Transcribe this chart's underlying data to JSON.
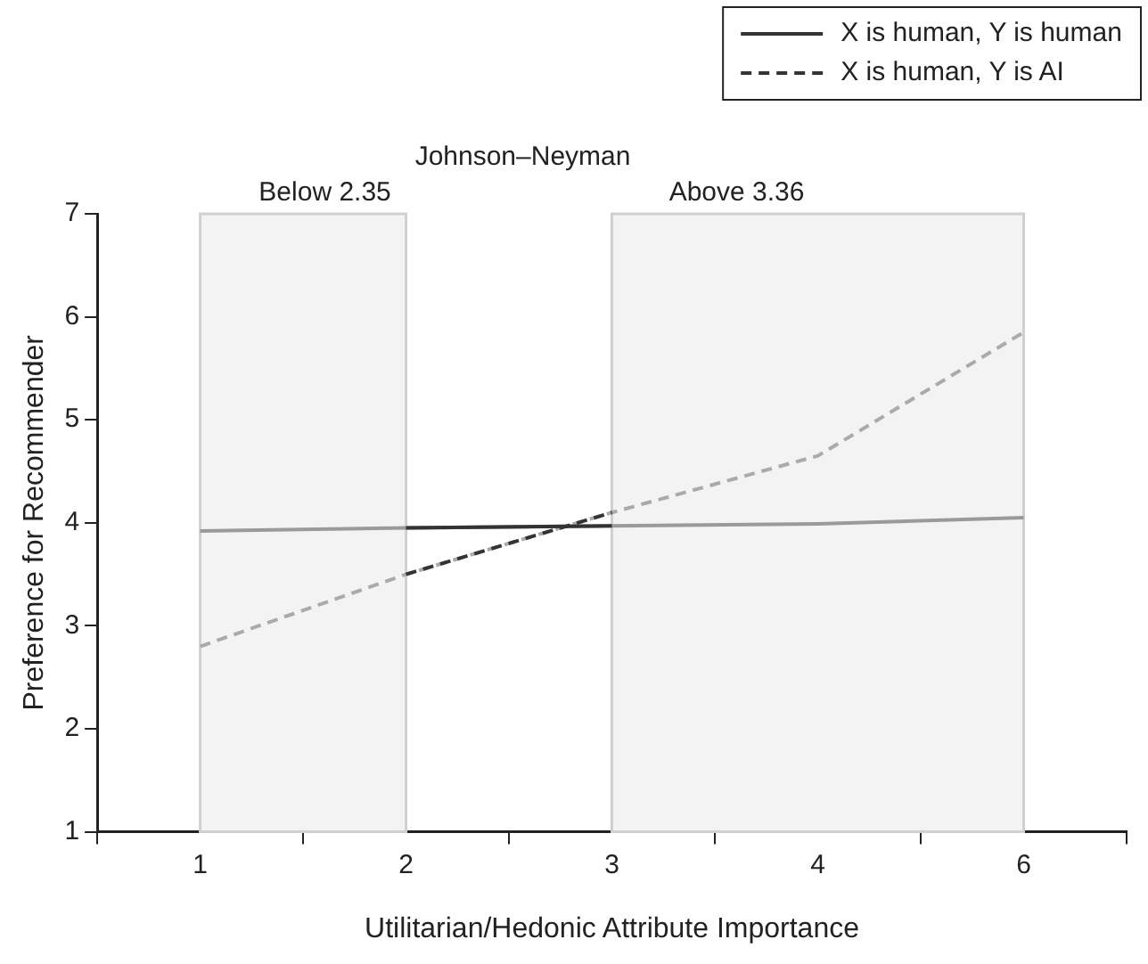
{
  "chart_data": {
    "type": "line",
    "xlabel": "Utilitarian/Hedonic Attribute Importance",
    "ylabel": "Preference for Recommender",
    "categories": [
      "1",
      "2",
      "3",
      "4",
      "6"
    ],
    "series": [
      {
        "name": "X is human, Y is human",
        "color": "#333333",
        "line_style": "solid",
        "values": [
          null,
          3.95,
          3.97,
          null,
          null
        ]
      },
      {
        "name": "X is human, Y is AI",
        "color": "#333333",
        "line_style": "dashed",
        "values": [
          null,
          3.5,
          4.1,
          null,
          null
        ]
      },
      {
        "color": "#9a9a9a",
        "line_style": "solid",
        "values": [
          3.92,
          3.95,
          3.97,
          3.99,
          4.05
        ]
      },
      {
        "color": "#aaaaaa",
        "line_style": "dashed",
        "values": [
          2.8,
          3.5,
          4.1,
          4.65,
          5.85
        ]
      }
    ],
    "ylim": [
      1,
      7
    ],
    "yticks": [
      1,
      2,
      3,
      4,
      5,
      6,
      7
    ],
    "grid": false,
    "legend": "top right",
    "marker": "none",
    "bands": [
      {
        "axis": "x",
        "from": "1",
        "to": "2",
        "label": "Below 2.35",
        "color": "#f3f3f3"
      },
      {
        "axis": "x",
        "from": "3",
        "to": "6",
        "label": "Above 3.36",
        "color": "#f3f3f3"
      }
    ],
    "annotations": [
      "Johnson–Neyman"
    ]
  }
}
